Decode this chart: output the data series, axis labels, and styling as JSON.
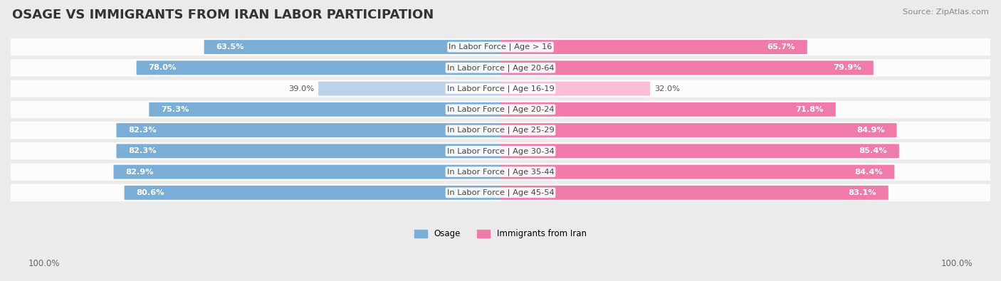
{
  "title": "OSAGE VS IMMIGRANTS FROM IRAN LABOR PARTICIPATION",
  "source": "Source: ZipAtlas.com",
  "categories": [
    "In Labor Force | Age > 16",
    "In Labor Force | Age 20-64",
    "In Labor Force | Age 16-19",
    "In Labor Force | Age 20-24",
    "In Labor Force | Age 25-29",
    "In Labor Force | Age 30-34",
    "In Labor Force | Age 35-44",
    "In Labor Force | Age 45-54"
  ],
  "osage_values": [
    63.5,
    78.0,
    39.0,
    75.3,
    82.3,
    82.3,
    82.9,
    80.6
  ],
  "iran_values": [
    65.7,
    79.9,
    32.0,
    71.8,
    84.9,
    85.4,
    84.4,
    83.1
  ],
  "osage_color": "#7aaed6",
  "osage_color_light": "#bad3e8",
  "iran_color": "#f07aaa",
  "iran_color_light": "#f9bdd5",
  "bg_color": "#ebebeb",
  "max_val": 100.0,
  "legend_osage": "Osage",
  "legend_iran": "Immigrants from Iran",
  "title_fontsize": 13,
  "label_fontsize": 8.2,
  "value_fontsize": 8.2,
  "footer_fontsize": 8.5
}
